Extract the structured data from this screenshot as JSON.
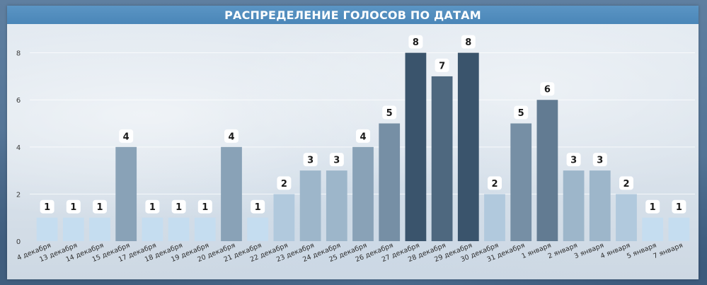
{
  "title": "РАСПРЕДЕЛЕНИЕ ГОЛОСОВ ПО ДАТАМ",
  "colors": {
    "title_bar": "#4a86b8",
    "bar_lightest": "#c5ddf0",
    "bar_darkest": "#3a546c",
    "label_background": "#ffffff"
  },
  "chart_data": {
    "type": "bar",
    "title": "РАСПРЕДЕЛЕНИЕ ГОЛОСОВ ПО ДАТАМ",
    "xlabel": "",
    "ylabel": "",
    "categories": [
      "4 декабря",
      "13 декабря",
      "14 декабря",
      "15 декабря",
      "17 декабря",
      "18 декабря",
      "19 декабря",
      "20 декабря",
      "21 декабря",
      "22 декабря",
      "23 декабря",
      "24 декабря",
      "25 декабря",
      "26 декабря",
      "27 декабря",
      "28 декабря",
      "29 декабря",
      "30 декабря",
      "31 декабря",
      "1 января",
      "2 января",
      "3 января",
      "4 января",
      "5 января",
      "7 января"
    ],
    "values": [
      1,
      1,
      1,
      4,
      1,
      1,
      1,
      4,
      1,
      2,
      3,
      3,
      4,
      5,
      8,
      7,
      8,
      2,
      5,
      6,
      3,
      3,
      2,
      1,
      1
    ],
    "yticks": [
      0,
      2,
      4,
      6,
      8
    ],
    "ylim": [
      0,
      8.8
    ],
    "grid": true,
    "data_labels": true,
    "legend": "none"
  }
}
